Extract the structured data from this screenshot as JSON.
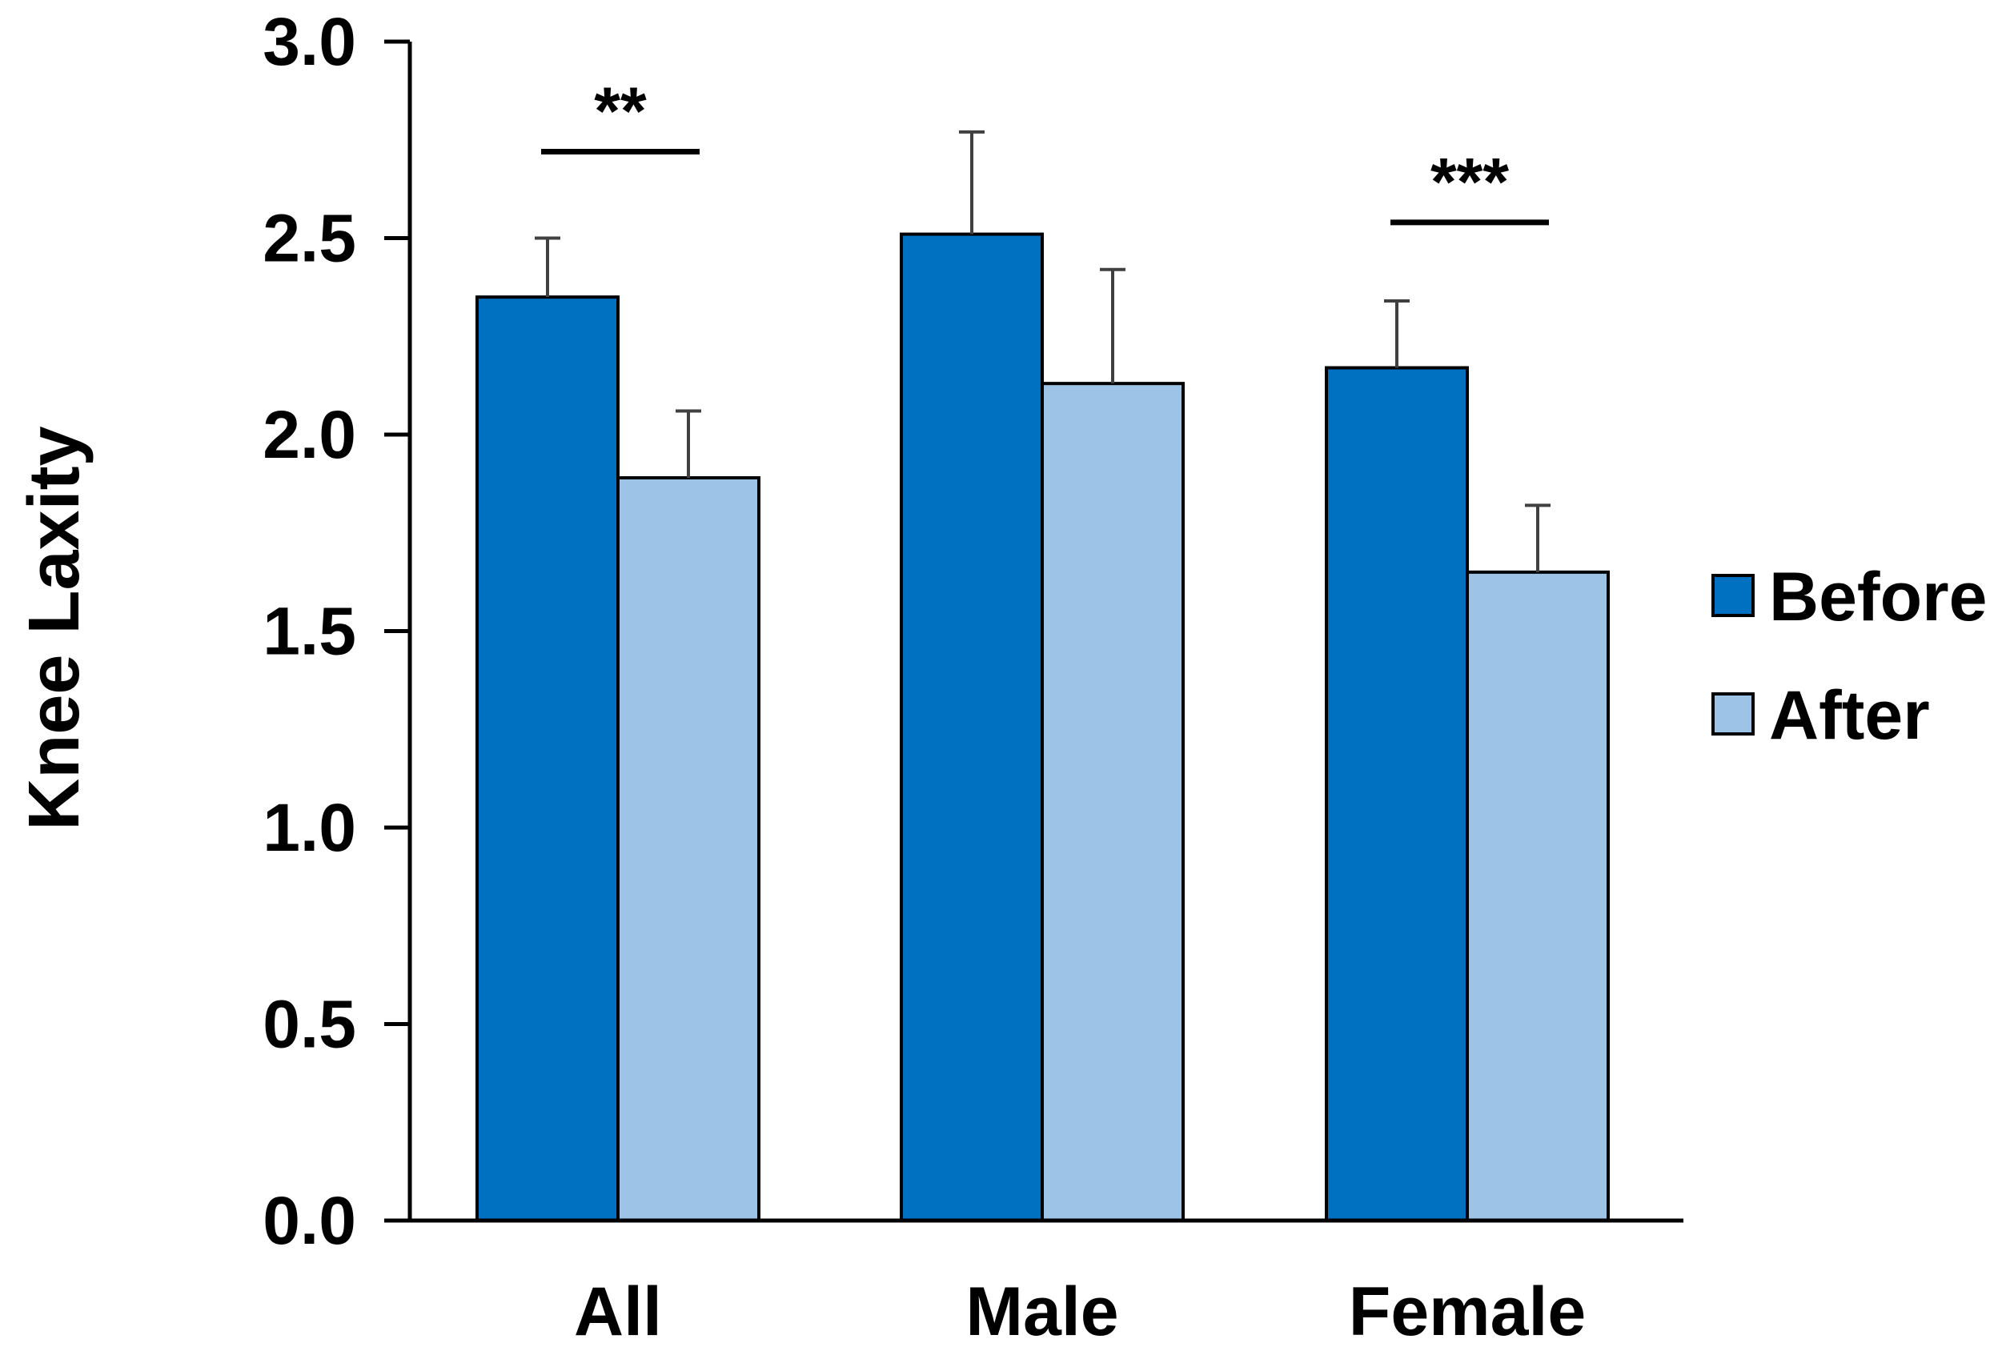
{
  "chart_data": {
    "type": "bar",
    "title": "",
    "xlabel": "",
    "ylabel": "Knee Laxity",
    "ylim": [
      0,
      3.0
    ],
    "yticks": [
      0.0,
      0.5,
      1.0,
      1.5,
      2.0,
      2.5,
      3.0
    ],
    "ytick_labels": [
      "0.0",
      "0.5",
      "1.0",
      "1.5",
      "2.0",
      "2.5",
      "3.0"
    ],
    "grid": false,
    "categories": [
      "All",
      "Male",
      "Female"
    ],
    "series": [
      {
        "name": "Before",
        "color": "#0070C0",
        "values": [
          2.35,
          2.51,
          2.17
        ],
        "errors": [
          0.15,
          0.26,
          0.17
        ]
      },
      {
        "name": "After",
        "color": "#9DC3E6",
        "values": [
          1.89,
          2.13,
          1.65
        ],
        "errors": [
          0.17,
          0.29,
          0.17
        ]
      }
    ],
    "legend": {
      "position": "right",
      "entries": [
        "Before",
        "After"
      ]
    },
    "annotations": [
      {
        "category": "All",
        "text": "**",
        "y": 2.72
      },
      {
        "category": "Female",
        "text": "***",
        "y": 2.54
      }
    ]
  }
}
